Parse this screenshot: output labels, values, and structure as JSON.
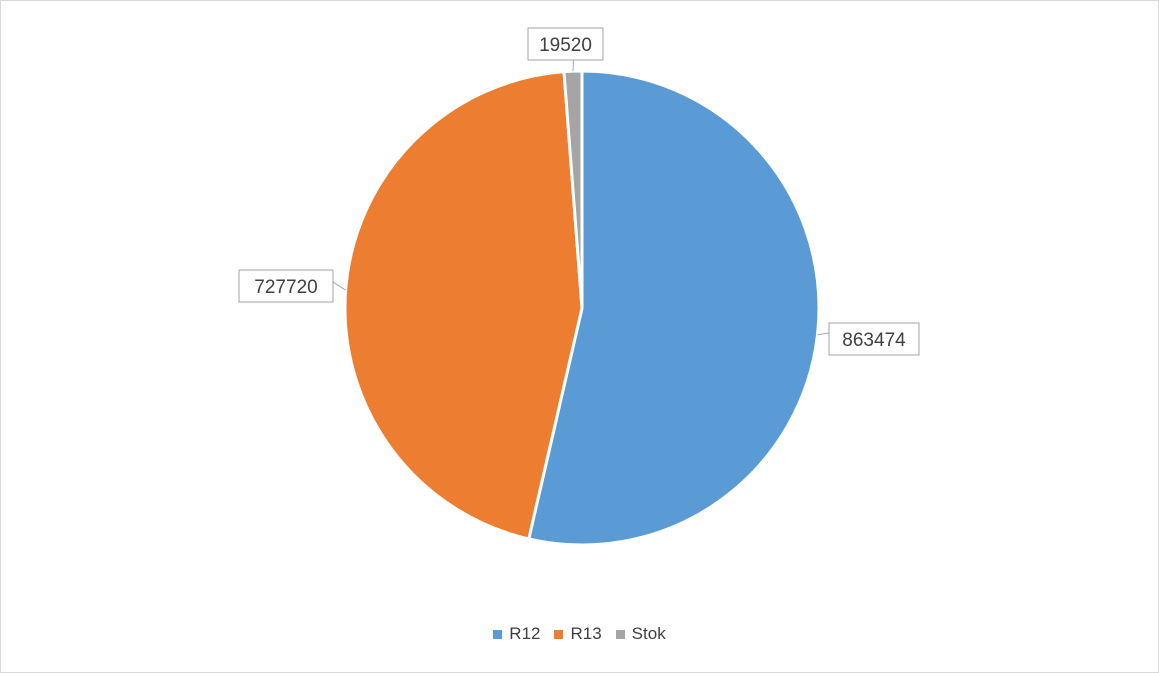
{
  "chart_data": {
    "type": "pie",
    "title": "",
    "slices": [
      {
        "label": "R12",
        "value": 863474,
        "data_label": "863474",
        "color": "#5b9bd5"
      },
      {
        "label": "R13",
        "value": 727720,
        "data_label": "727720",
        "color": "#ed7d31"
      },
      {
        "label": "Stok",
        "value": 19520,
        "data_label": "19520",
        "color": "#a5a5a5"
      }
    ],
    "legend": {
      "placement": "bottom",
      "entries": [
        "R12",
        "R13",
        "Stok"
      ]
    },
    "data_labels": "callouts"
  }
}
